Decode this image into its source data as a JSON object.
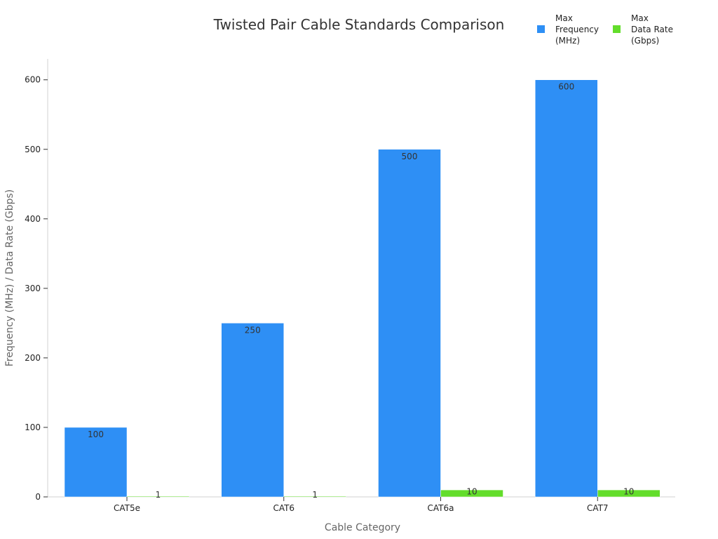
{
  "chart_data": {
    "type": "bar",
    "title": "Twisted Pair Cable Standards Comparison",
    "xlabel": "Cable Category",
    "ylabel": "Frequency (MHz) / Data Rate (Gbps)",
    "categories": [
      "CAT5e",
      "CAT6",
      "CAT6a",
      "CAT7"
    ],
    "series": [
      {
        "name": "Max Frequency (MHz)",
        "values": [
          100,
          250,
          500,
          600
        ],
        "color": "#2E8FF5",
        "legend_lines": [
          "Max",
          "Frequency",
          "(MHz)"
        ],
        "show_labels": true
      },
      {
        "name": "Max Data Rate (Gbps)",
        "values": [
          1,
          1,
          10,
          10
        ],
        "color": "#63DD2B",
        "legend_lines": [
          "Max",
          "Data Rate",
          "(Gbps)"
        ],
        "show_labels": true
      }
    ],
    "ylim": [
      0,
      630
    ],
    "yticks": [
      0,
      100,
      200,
      300,
      400,
      500,
      600
    ],
    "grid": false,
    "legend_position": "top-right"
  }
}
